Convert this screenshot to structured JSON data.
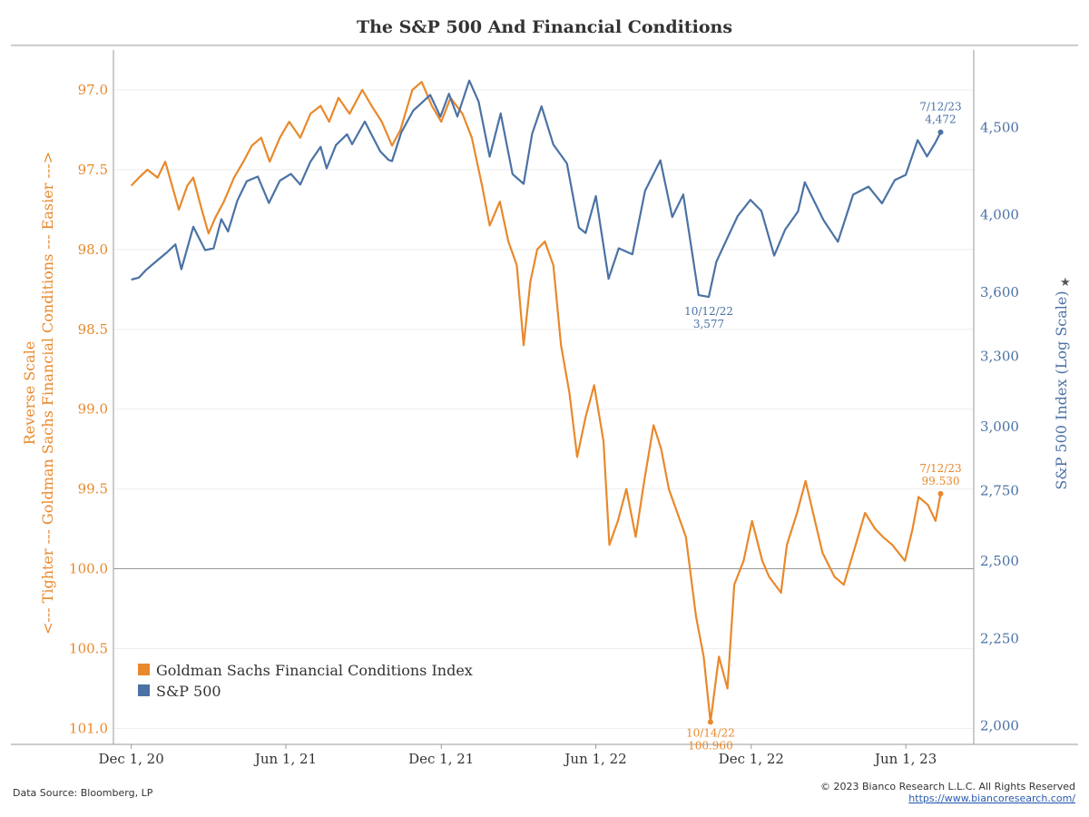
{
  "colors": {
    "gsfci": "#e8892c",
    "spx": "#4b72a4",
    "axis": "#999999",
    "grid": "#eeeeee",
    "text": "#333333",
    "link": "#2a5db0"
  },
  "footer": {
    "source": "Data Source: Bloomberg, LP",
    "copyright": "© 2023 Bianco Research L.L.C. All Rights Reserved",
    "url": "https://www.biancoresearch.com/"
  },
  "chart_data": {
    "type": "line",
    "title": "The S&P 500 And Financial Conditions",
    "x_ticks": [
      "Dec 1, 20",
      "Jun 1, 21",
      "Dec 1, 21",
      "Jun 1, 22",
      "Dec 1, 22",
      "Jun 1, 23"
    ],
    "xlim": [
      "2020-11-10",
      "2023-08-20"
    ],
    "y_left": {
      "label_lines": [
        "Reverse Scale",
        "<--- Tighter --- Goldman Sachs Financial Conditions --- Easier --->"
      ],
      "ticks": [
        "97.0",
        "97.5",
        "98.0",
        "98.5",
        "99.0",
        "99.5",
        "100.0",
        "100.5",
        "101.0"
      ],
      "ylim": [
        96.75,
        101.1
      ],
      "reversed": true
    },
    "y_right": {
      "label": "S&P 500 Index (Log Scale)",
      "ticks": [
        "2,000",
        "2,250",
        "2,500",
        "2,750",
        "3,000",
        "3,300",
        "3,600",
        "4,000",
        "4,500"
      ],
      "ylim": [
        1950,
        5000
      ],
      "log": true
    },
    "reference_line": 100.0,
    "legend": [
      "Goldman Sachs Financial Conditions Index",
      "S&P 500"
    ],
    "legend_position": "bottom-left",
    "series": [
      {
        "name": "Goldman Sachs Financial Conditions Index",
        "axis": "left",
        "points": [
          [
            "2020-12-01",
            97.6
          ],
          [
            "2020-12-10",
            97.55
          ],
          [
            "2020-12-20",
            97.5
          ],
          [
            "2021-01-01",
            97.55
          ],
          [
            "2021-01-10",
            97.45
          ],
          [
            "2021-01-18",
            97.6
          ],
          [
            "2021-01-26",
            97.75
          ],
          [
            "2021-02-05",
            97.6
          ],
          [
            "2021-02-12",
            97.55
          ],
          [
            "2021-02-22",
            97.75
          ],
          [
            "2021-03-02",
            97.9
          ],
          [
            "2021-03-10",
            97.8
          ],
          [
            "2021-03-20",
            97.7
          ],
          [
            "2021-04-01",
            97.55
          ],
          [
            "2021-04-12",
            97.45
          ],
          [
            "2021-04-22",
            97.35
          ],
          [
            "2021-05-03",
            97.3
          ],
          [
            "2021-05-13",
            97.45
          ],
          [
            "2021-05-25",
            97.3
          ],
          [
            "2021-06-05",
            97.2
          ],
          [
            "2021-06-18",
            97.3
          ],
          [
            "2021-06-30",
            97.15
          ],
          [
            "2021-07-12",
            97.1
          ],
          [
            "2021-07-22",
            97.2
          ],
          [
            "2021-08-02",
            97.05
          ],
          [
            "2021-08-15",
            97.15
          ],
          [
            "2021-08-30",
            97.0
          ],
          [
            "2021-09-10",
            97.1
          ],
          [
            "2021-09-22",
            97.2
          ],
          [
            "2021-10-04",
            97.35
          ],
          [
            "2021-10-14",
            97.25
          ],
          [
            "2021-10-28",
            97.0
          ],
          [
            "2021-11-08",
            96.95
          ],
          [
            "2021-11-20",
            97.1
          ],
          [
            "2021-12-01",
            97.2
          ],
          [
            "2021-12-12",
            97.05
          ],
          [
            "2021-12-26",
            97.15
          ],
          [
            "2022-01-06",
            97.3
          ],
          [
            "2022-01-18",
            97.6
          ],
          [
            "2022-01-27",
            97.85
          ],
          [
            "2022-02-08",
            97.7
          ],
          [
            "2022-02-18",
            97.95
          ],
          [
            "2022-02-28",
            98.1
          ],
          [
            "2022-03-08",
            98.6
          ],
          [
            "2022-03-16",
            98.2
          ],
          [
            "2022-03-24",
            98.0
          ],
          [
            "2022-04-02",
            97.95
          ],
          [
            "2022-04-12",
            98.1
          ],
          [
            "2022-04-21",
            98.6
          ],
          [
            "2022-05-01",
            98.9
          ],
          [
            "2022-05-10",
            99.3
          ],
          [
            "2022-05-20",
            99.05
          ],
          [
            "2022-05-30",
            98.85
          ],
          [
            "2022-06-10",
            99.2
          ],
          [
            "2022-06-17",
            99.85
          ],
          [
            "2022-06-27",
            99.7
          ],
          [
            "2022-07-07",
            99.5
          ],
          [
            "2022-07-18",
            99.8
          ],
          [
            "2022-07-28",
            99.45
          ],
          [
            "2022-08-08",
            99.1
          ],
          [
            "2022-08-17",
            99.25
          ],
          [
            "2022-08-26",
            99.5
          ],
          [
            "2022-09-05",
            99.65
          ],
          [
            "2022-09-15",
            99.8
          ],
          [
            "2022-09-27",
            100.3
          ],
          [
            "2022-10-06",
            100.55
          ],
          [
            "2022-10-14",
            100.96
          ],
          [
            "2022-10-24",
            100.55
          ],
          [
            "2022-11-03",
            100.75
          ],
          [
            "2022-11-11",
            100.1
          ],
          [
            "2022-11-22",
            99.95
          ],
          [
            "2022-12-02",
            99.7
          ],
          [
            "2022-12-14",
            99.95
          ],
          [
            "2022-12-22",
            100.05
          ],
          [
            "2023-01-05",
            100.15
          ],
          [
            "2023-01-12",
            99.85
          ],
          [
            "2023-01-24",
            99.65
          ],
          [
            "2023-02-03",
            99.45
          ],
          [
            "2023-02-14",
            99.7
          ],
          [
            "2023-02-23",
            99.9
          ],
          [
            "2023-03-09",
            100.05
          ],
          [
            "2023-03-20",
            100.1
          ],
          [
            "2023-04-03",
            99.85
          ],
          [
            "2023-04-14",
            99.65
          ],
          [
            "2023-04-26",
            99.75
          ],
          [
            "2023-05-05",
            99.8
          ],
          [
            "2023-05-16",
            99.85
          ],
          [
            "2023-05-31",
            99.95
          ],
          [
            "2023-06-09",
            99.75
          ],
          [
            "2023-06-16",
            99.55
          ],
          [
            "2023-06-27",
            99.6
          ],
          [
            "2023-07-06",
            99.7
          ],
          [
            "2023-07-12",
            99.53
          ]
        ]
      },
      {
        "name": "S&P 500",
        "axis": "right",
        "points": [
          [
            "2020-12-01",
            3662
          ],
          [
            "2020-12-10",
            3672
          ],
          [
            "2020-12-18",
            3709
          ],
          [
            "2020-12-31",
            3756
          ],
          [
            "2021-01-12",
            3800
          ],
          [
            "2021-01-22",
            3841
          ],
          [
            "2021-01-29",
            3714
          ],
          [
            "2021-02-12",
            3934
          ],
          [
            "2021-02-26",
            3811
          ],
          [
            "2021-03-08",
            3821
          ],
          [
            "2021-03-17",
            3975
          ],
          [
            "2021-03-25",
            3909
          ],
          [
            "2021-04-05",
            4077
          ],
          [
            "2021-04-16",
            4185
          ],
          [
            "2021-04-29",
            4211
          ],
          [
            "2021-05-12",
            4063
          ],
          [
            "2021-05-25",
            4188
          ],
          [
            "2021-06-07",
            4226
          ],
          [
            "2021-06-18",
            4166
          ],
          [
            "2021-06-30",
            4297
          ],
          [
            "2021-07-12",
            4384
          ],
          [
            "2021-07-19",
            4258
          ],
          [
            "2021-07-30",
            4395
          ],
          [
            "2021-08-12",
            4460
          ],
          [
            "2021-08-18",
            4400
          ],
          [
            "2021-09-02",
            4537
          ],
          [
            "2021-09-20",
            4358
          ],
          [
            "2021-09-30",
            4307
          ],
          [
            "2021-10-04",
            4300
          ],
          [
            "2021-10-15",
            4471
          ],
          [
            "2021-10-29",
            4605
          ],
          [
            "2021-11-18",
            4704
          ],
          [
            "2021-11-30",
            4567
          ],
          [
            "2021-12-10",
            4712
          ],
          [
            "2021-12-20",
            4568
          ],
          [
            "2022-01-03",
            4797
          ],
          [
            "2022-01-14",
            4662
          ],
          [
            "2022-01-27",
            4326
          ],
          [
            "2022-02-09",
            4587
          ],
          [
            "2022-02-23",
            4225
          ],
          [
            "2022-03-08",
            4170
          ],
          [
            "2022-03-18",
            4463
          ],
          [
            "2022-03-29",
            4632
          ],
          [
            "2022-04-12",
            4397
          ],
          [
            "2022-04-28",
            4287
          ],
          [
            "2022-05-12",
            3930
          ],
          [
            "2022-05-20",
            3901
          ],
          [
            "2022-06-01",
            4101
          ],
          [
            "2022-06-16",
            3666
          ],
          [
            "2022-06-28",
            3821
          ],
          [
            "2022-07-14",
            3790
          ],
          [
            "2022-07-29",
            4130
          ],
          [
            "2022-08-16",
            4305
          ],
          [
            "2022-08-30",
            3986
          ],
          [
            "2022-09-12",
            4110
          ],
          [
            "2022-09-30",
            3586
          ],
          [
            "2022-10-12",
            3577
          ],
          [
            "2022-10-21",
            3752
          ],
          [
            "2022-11-01",
            3856
          ],
          [
            "2022-11-15",
            3991
          ],
          [
            "2022-11-30",
            4080
          ],
          [
            "2022-12-13",
            4019
          ],
          [
            "2022-12-28",
            3783
          ],
          [
            "2023-01-10",
            3919
          ],
          [
            "2023-01-25",
            4016
          ],
          [
            "2023-02-02",
            4179
          ],
          [
            "2023-02-24",
            3970
          ],
          [
            "2023-03-13",
            3855
          ],
          [
            "2023-03-31",
            4109
          ],
          [
            "2023-04-18",
            4154
          ],
          [
            "2023-05-04",
            4061
          ],
          [
            "2023-05-19",
            4191
          ],
          [
            "2023-06-01",
            4221
          ],
          [
            "2023-06-15",
            4425
          ],
          [
            "2023-06-26",
            4328
          ],
          [
            "2023-07-06",
            4411
          ],
          [
            "2023-07-12",
            4472
          ]
        ]
      }
    ],
    "annotations": [
      {
        "series": "S&P 500",
        "date_label": "7/12/23",
        "value_label": "4,472"
      },
      {
        "series": "S&P 500",
        "date_label": "10/12/22",
        "value_label": "3,577"
      },
      {
        "series": "Goldman Sachs Financial Conditions Index",
        "date_label": "7/12/23",
        "value_label": "99.530"
      },
      {
        "series": "Goldman Sachs Financial Conditions Index",
        "date_label": "10/14/22",
        "value_label": "100.960"
      }
    ]
  }
}
